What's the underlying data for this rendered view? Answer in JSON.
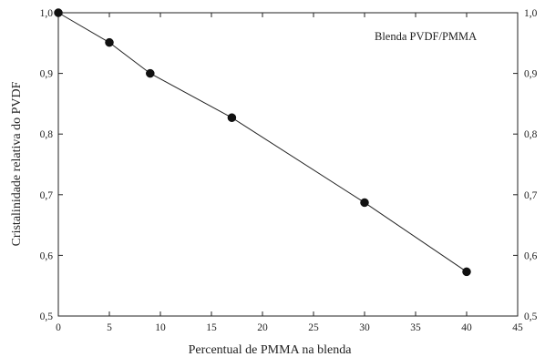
{
  "chart_data": {
    "type": "line",
    "title": "",
    "annotation": "Blenda PVDF/PMMA",
    "xlabel": "Percentual de PMMA na blenda",
    "ylabel": "Cristalinidade relativa do PVDF",
    "xlim": [
      0,
      45
    ],
    "ylim": [
      0.5,
      1.0
    ],
    "x_ticks": [
      0,
      5,
      10,
      15,
      20,
      25,
      30,
      35,
      40,
      45
    ],
    "x_tick_labels": [
      "0",
      "5",
      "10",
      "15",
      "20",
      "25",
      "30",
      "35",
      "40",
      "45"
    ],
    "y_ticks": [
      0.5,
      0.6,
      0.7,
      0.8,
      0.9,
      1.0
    ],
    "y_tick_labels": [
      "0,5",
      "0,6",
      "0,7",
      "0,8",
      "0,9",
      "1,0"
    ],
    "right_y_tick_labels": [
      "0,5",
      "0,6",
      "0,7",
      "0,8",
      "0,9",
      "1,0"
    ],
    "grid": false,
    "series": [
      {
        "x": [
          0,
          5,
          9,
          17,
          30,
          40
        ],
        "y": [
          1.0,
          0.951,
          0.9,
          0.827,
          0.687,
          0.573
        ],
        "color": "#111111"
      }
    ]
  }
}
